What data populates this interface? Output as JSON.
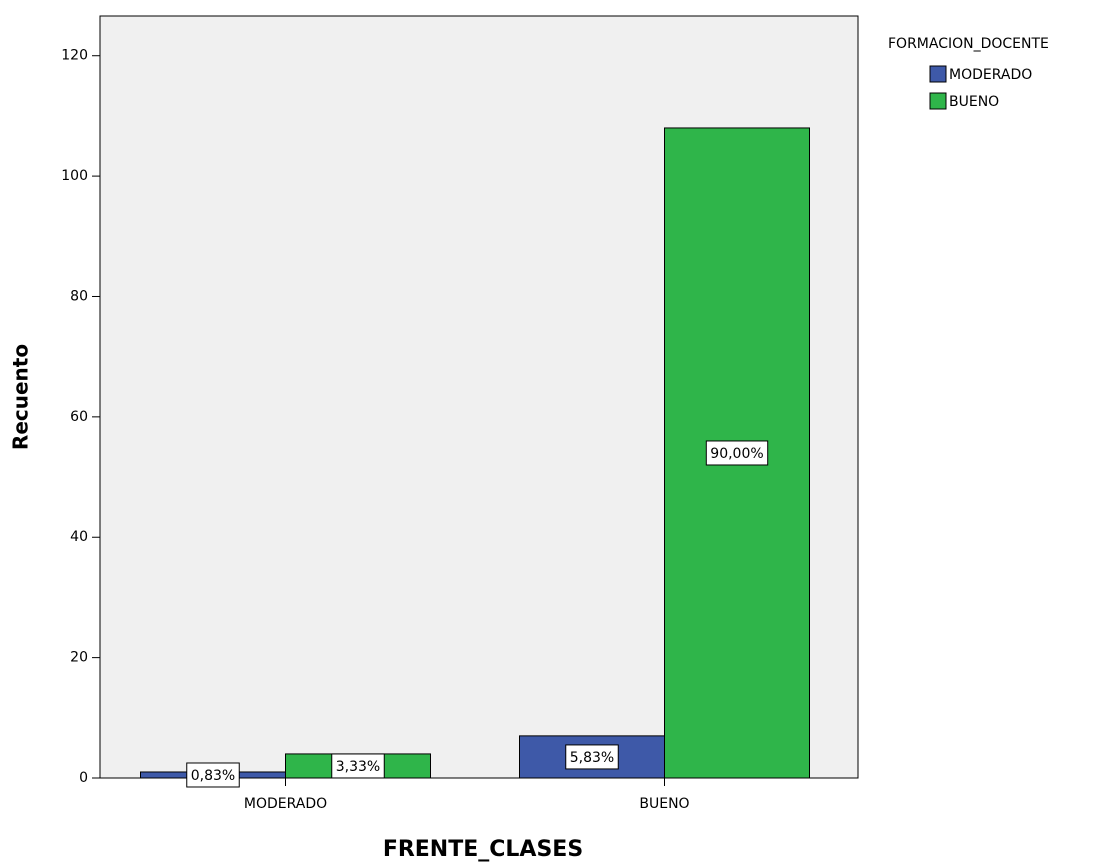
{
  "chart_data": {
    "type": "bar",
    "y_label": "Recuento",
    "x_label": "FRENTE_CLASES",
    "legend_title": "FORMACION_DOCENTE",
    "categories": [
      "MODERADO",
      "BUENO"
    ],
    "series": [
      {
        "name": "MODERADO",
        "color": "#3e59a8",
        "values": [
          1,
          7
        ],
        "percent_labels": [
          "0,83%",
          "5,83%"
        ]
      },
      {
        "name": "BUENO",
        "color": "#2fb54a",
        "values": [
          4,
          108
        ],
        "percent_labels": [
          "3,33%",
          "90,00%"
        ]
      }
    ],
    "ylim": [
      0,
      126.6
    ],
    "yticks": [
      0,
      20,
      40,
      60,
      80,
      100,
      120
    ],
    "legend": "right"
  }
}
